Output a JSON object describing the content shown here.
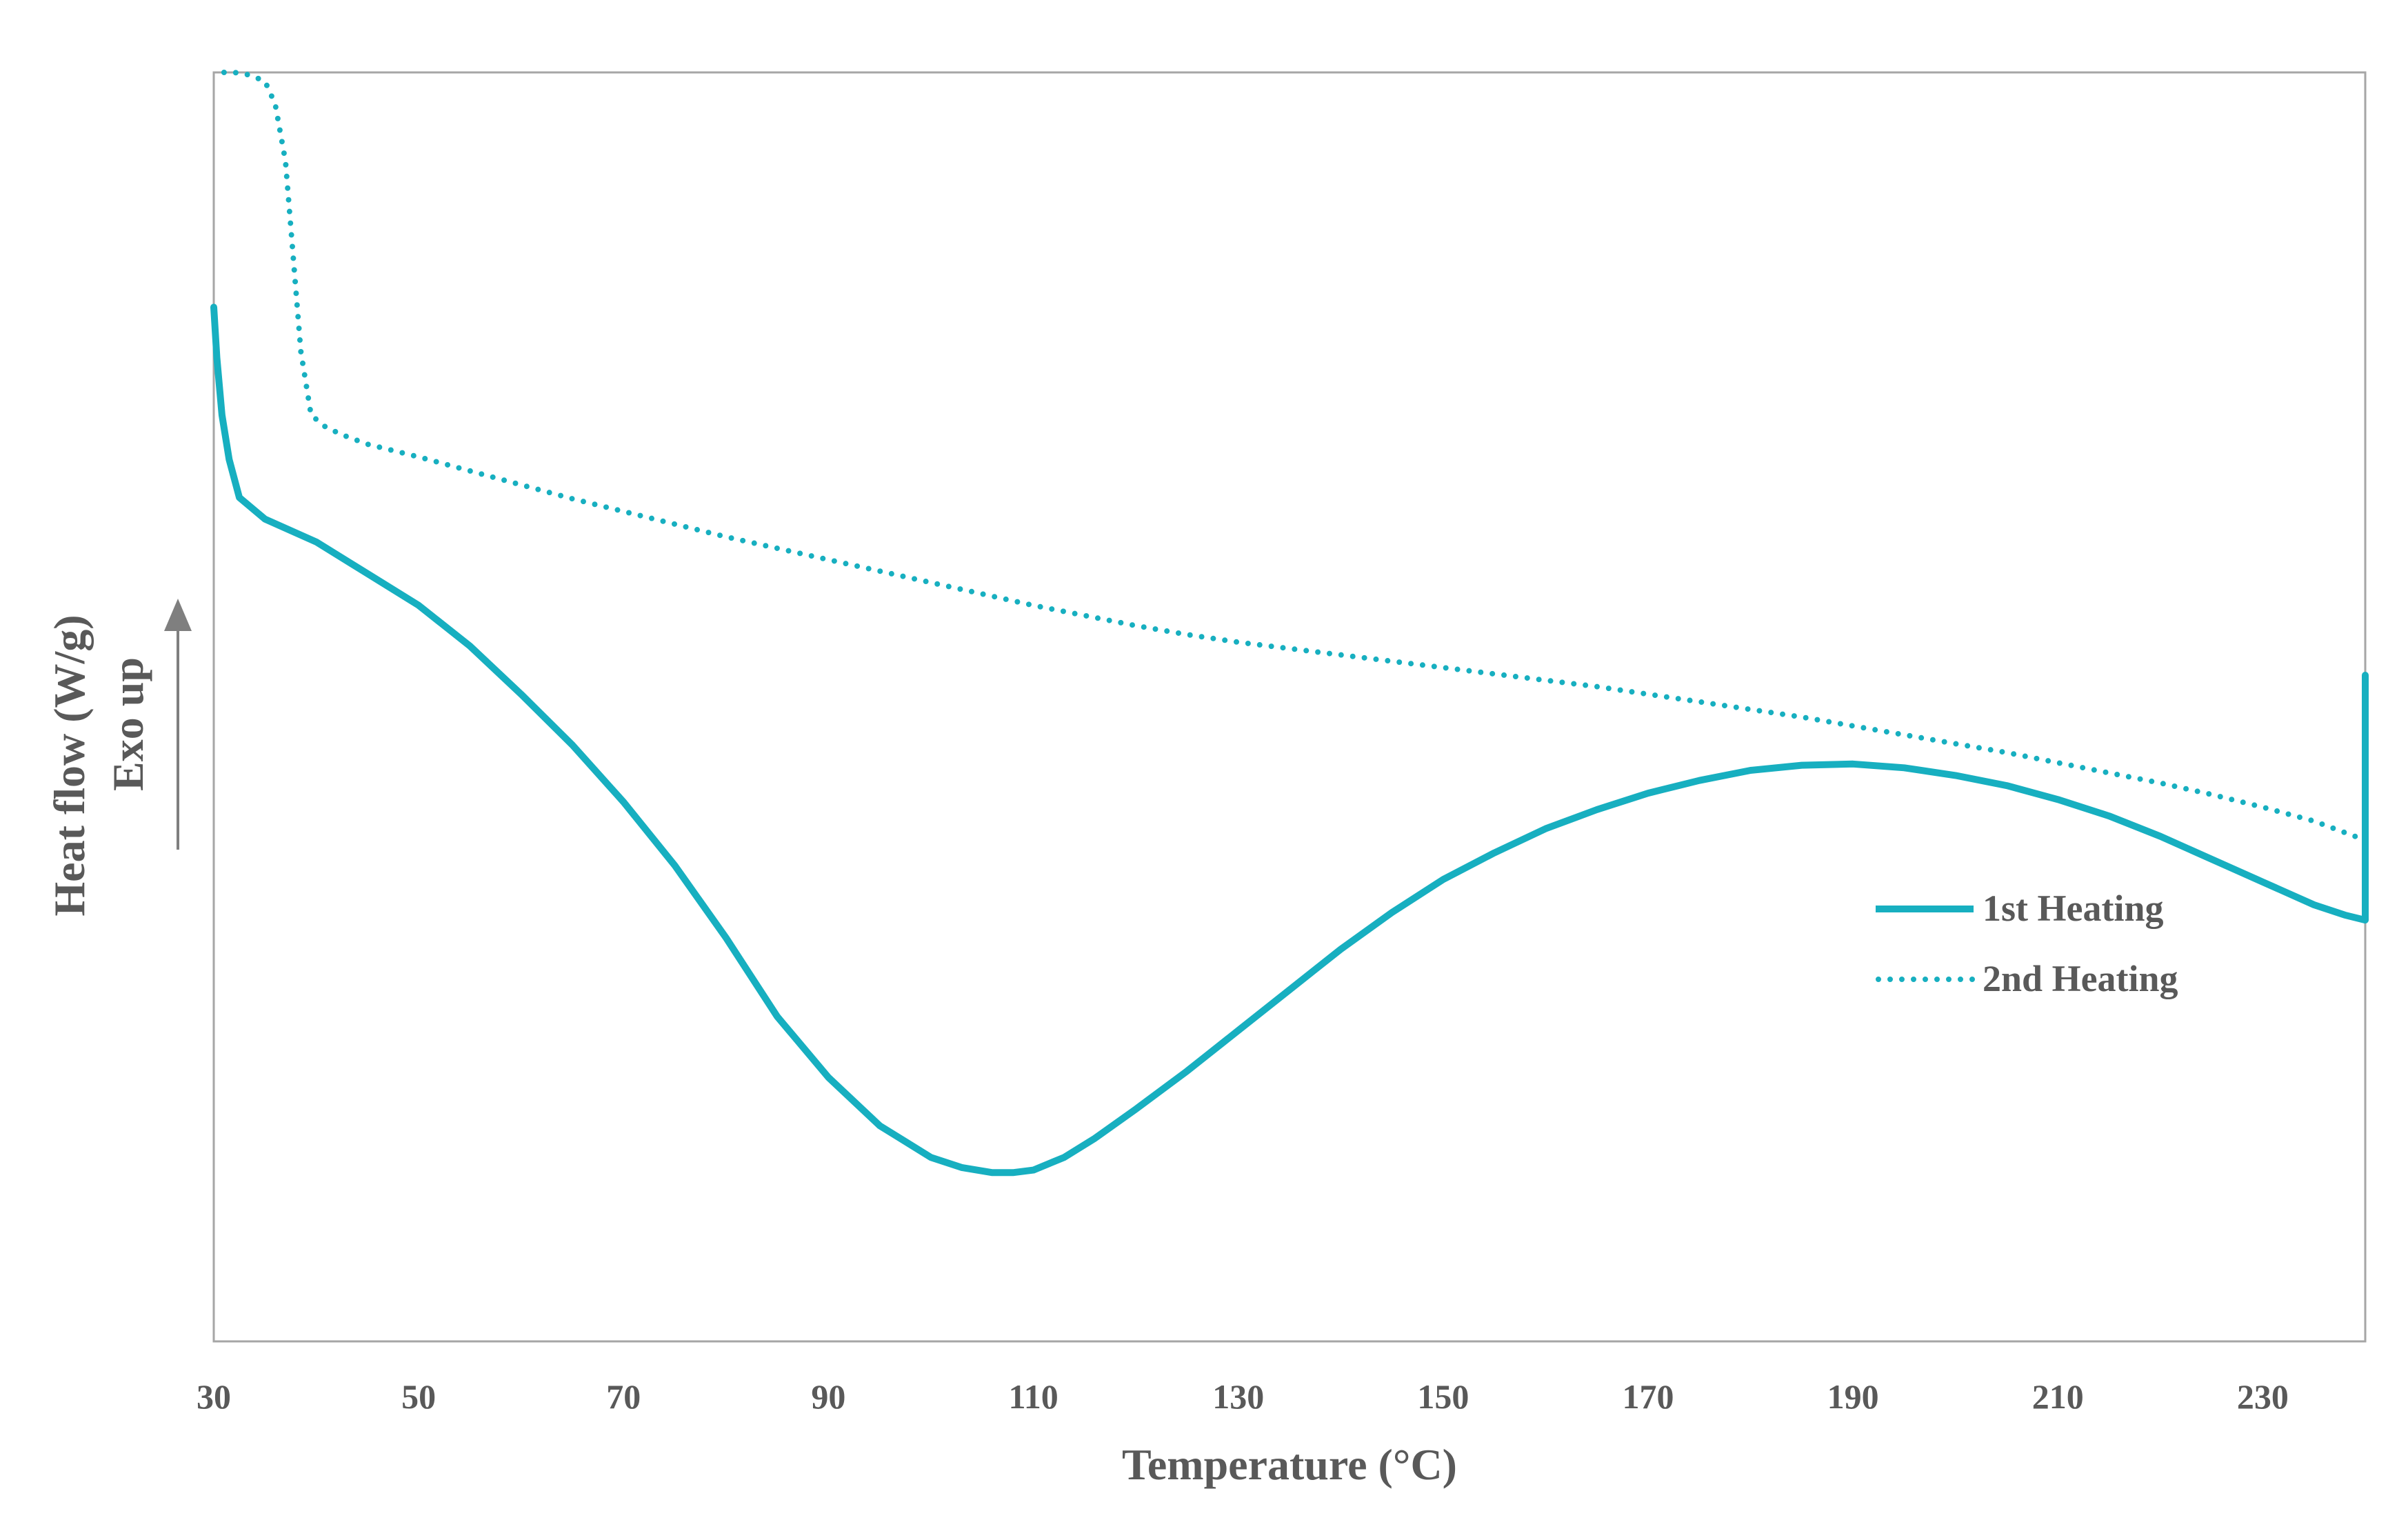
{
  "colors": {
    "series": "#17AFC0",
    "frame": "#A6A6A6",
    "text": "#595959",
    "arrow": "#7F7F7F"
  },
  "chart_data": {
    "type": "line",
    "title": "",
    "xlabel": "Temperature (°C)",
    "ylabel": "Heat flow (W/g)",
    "ylabel_note": "Exo up",
    "xlim": [
      30,
      240
    ],
    "ylim": [
      0,
      100
    ],
    "x_ticks": [
      "30",
      "50",
      "70",
      "90",
      "110",
      "130",
      "150",
      "170",
      "190",
      "210",
      "230"
    ],
    "x_tick_values": [
      30,
      50,
      70,
      90,
      110,
      130,
      150,
      170,
      190,
      210,
      230
    ],
    "y_ticks_shown": false,
    "grid": false,
    "legend_position": "right-middle",
    "series": [
      {
        "name": "1st Heating",
        "style": "solid",
        "x": [
          30,
          30.3,
          30.8,
          31.5,
          32.5,
          35,
          40,
          45,
          50,
          55,
          60,
          65,
          70,
          75,
          80,
          85,
          90,
          95,
          100,
          103,
          106,
          108,
          110,
          113,
          116,
          120,
          125,
          130,
          135,
          140,
          145,
          150,
          155,
          160,
          165,
          170,
          175,
          180,
          185,
          190,
          195,
          200,
          205,
          210,
          215,
          220,
          225,
          230,
          235,
          238,
          240,
          240,
          240
        ],
        "y": [
          81.5,
          77.5,
          73,
          69.5,
          66.5,
          64.8,
          63,
          60.5,
          58,
          54.8,
          51,
          47,
          42.5,
          37.5,
          31.8,
          25.6,
          20.8,
          17,
          14.5,
          13.7,
          13.3,
          13.3,
          13.5,
          14.5,
          16,
          18.3,
          21.3,
          24.5,
          27.7,
          30.9,
          33.8,
          36.4,
          38.5,
          40.4,
          41.9,
          43.2,
          44.2,
          45,
          45.4,
          45.5,
          45.2,
          44.6,
          43.8,
          42.7,
          41.4,
          39.8,
          38,
          36.2,
          34.4,
          33.6,
          33.2,
          40,
          52.5
        ]
      },
      {
        "name": "2nd Heating",
        "style": "dotted",
        "x": [
          31,
          32,
          33.5,
          35,
          36,
          37,
          37.7,
          38.5,
          39.5,
          41,
          43,
          45,
          50,
          55,
          60,
          65,
          70,
          75,
          80,
          85,
          90,
          95,
          100,
          105,
          110,
          115,
          120,
          125,
          130,
          135,
          140,
          145,
          150,
          155,
          160,
          165,
          170,
          175,
          180,
          185,
          190,
          195,
          200,
          205,
          210,
          215,
          220,
          225,
          230,
          235,
          240
        ],
        "y": [
          100,
          100,
          99.8,
          99.3,
          97.5,
          93,
          86,
          78,
          73,
          72,
          71.3,
          70.7,
          69.7,
          68.6,
          67.5,
          66.4,
          65.4,
          64.4,
          63.4,
          62.5,
          61.6,
          60.7,
          59.8,
          58.9,
          58,
          57.2,
          56.4,
          55.7,
          55.1,
          54.6,
          54.1,
          53.6,
          53.1,
          52.6,
          52.1,
          51.6,
          51,
          50.4,
          49.8,
          49.2,
          48.5,
          47.8,
          47.1,
          46.4,
          45.6,
          44.8,
          44,
          43.1,
          42.1,
          41,
          39.5
        ]
      }
    ]
  }
}
